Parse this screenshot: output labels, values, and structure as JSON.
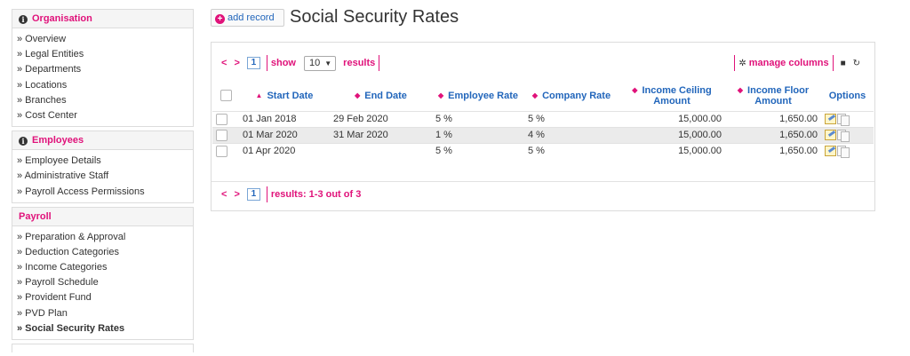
{
  "sidebar": {
    "organisation": {
      "title": "Organisation",
      "items": [
        "» Overview",
        "» Legal Entities",
        "» Departments",
        "» Locations",
        "» Branches",
        "» Cost Center"
      ]
    },
    "employees": {
      "title": "Employees",
      "items": [
        "» Employee Details",
        "» Administrative Staff",
        "» Payroll Access Permissions"
      ]
    },
    "payroll": {
      "title": "Payroll",
      "items": [
        "» Preparation & Approval",
        "» Deduction Categories",
        "» Income Categories",
        "» Payroll Schedule",
        "» Provident Fund",
        "» PVD Plan",
        "» Social Security Rates"
      ],
      "active_item": "» Social Security Rates"
    }
  },
  "header": {
    "add_label": "add record",
    "title": "Social Security Rates"
  },
  "toolbar": {
    "prev": "<",
    "next": ">",
    "page": "1",
    "show_label": "show",
    "page_size": "10",
    "results_label": "results",
    "manage_columns": "manage columns"
  },
  "table": {
    "headers": {
      "start_date": "Start Date",
      "end_date": "End Date",
      "employee_rate": "Employee Rate",
      "company_rate": "Company Rate",
      "income_ceiling": "Income Ceiling Amount",
      "income_floor": "Income Floor Amount",
      "options": "Options"
    },
    "rows": [
      {
        "start_date": "01 Jan 2018",
        "end_date": "29 Feb 2020",
        "employee_rate": "5 %",
        "company_rate": "5 %",
        "income_ceiling": "15,000.00",
        "income_floor": "1,650.00"
      },
      {
        "start_date": "01 Mar 2020",
        "end_date": "31 Mar 2020",
        "employee_rate": "1 %",
        "company_rate": "4 %",
        "income_ceiling": "15,000.00",
        "income_floor": "1,650.00"
      },
      {
        "start_date": "01 Apr 2020",
        "end_date": "",
        "employee_rate": "5 %",
        "company_rate": "5 %",
        "income_ceiling": "15,000.00",
        "income_floor": "1,650.00"
      }
    ]
  },
  "footer": {
    "prev": "<",
    "next": ">",
    "page": "1",
    "results_text": "results: 1-3 out of 3"
  },
  "colors": {
    "accent": "#e0127a",
    "link": "#2266bb"
  }
}
